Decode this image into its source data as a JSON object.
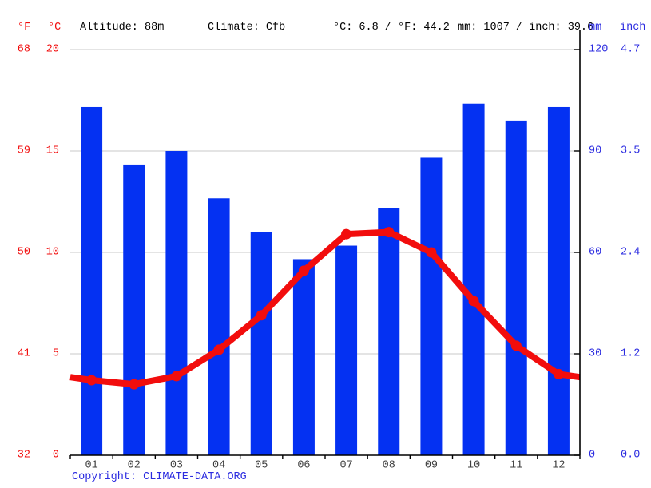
{
  "header": {
    "unit_f": "°F",
    "unit_c": "°C",
    "altitude": "Altitude: 88m",
    "climate": "Climate: Cfb",
    "avg_temp": "°C: 6.8 / °F: 44.2",
    "annual_precip": "mm: 1007 / inch: 39.6",
    "unit_mm": "mm",
    "unit_inch": "inch"
  },
  "footer": {
    "copyright_label": "Copyright: ",
    "copyright_link": "CLIMATE-DATA.ORG"
  },
  "colors": {
    "bar": "#0431f2",
    "line": "#f20d0d",
    "temp_text": "#f20d0d",
    "precip_text": "#2b2be0",
    "grid": "#c9c9c9",
    "axis": "#000000",
    "month_text": "#3f3f3f"
  },
  "chart_data": {
    "type": "bar",
    "subtype": "climograph: precipitation bars + temperature line",
    "categories": [
      "01",
      "02",
      "03",
      "04",
      "05",
      "06",
      "07",
      "08",
      "09",
      "10",
      "11",
      "12"
    ],
    "series": [
      {
        "name": "Precipitation (mm)",
        "kind": "bar",
        "values": [
          103,
          86,
          90,
          76,
          66,
          58,
          62,
          73,
          88,
          104,
          99,
          103
        ]
      },
      {
        "name": "Temperature (°C)",
        "kind": "line",
        "values": [
          3.7,
          3.5,
          3.9,
          5.2,
          6.9,
          9.1,
          10.9,
          11.0,
          10.0,
          7.6,
          5.4,
          4.0
        ]
      }
    ],
    "left_axis": {
      "f_ticks": [
        "68",
        "59",
        "50",
        "41",
        "32"
      ],
      "c_ticks": [
        "20",
        "15",
        "10",
        "5",
        "0"
      ],
      "c_values": [
        20,
        15,
        10,
        5,
        0
      ],
      "c_range": [
        0,
        20
      ]
    },
    "right_axis": {
      "mm_ticks": [
        "120",
        "90",
        "60",
        "30",
        "0"
      ],
      "inch_ticks": [
        "4.7",
        "3.5",
        "2.4",
        "1.2",
        "0.0"
      ],
      "mm_values": [
        120,
        90,
        60,
        30,
        0
      ],
      "mm_range": [
        0,
        120
      ]
    },
    "grid": true,
    "legend_position": "none",
    "title": ""
  }
}
